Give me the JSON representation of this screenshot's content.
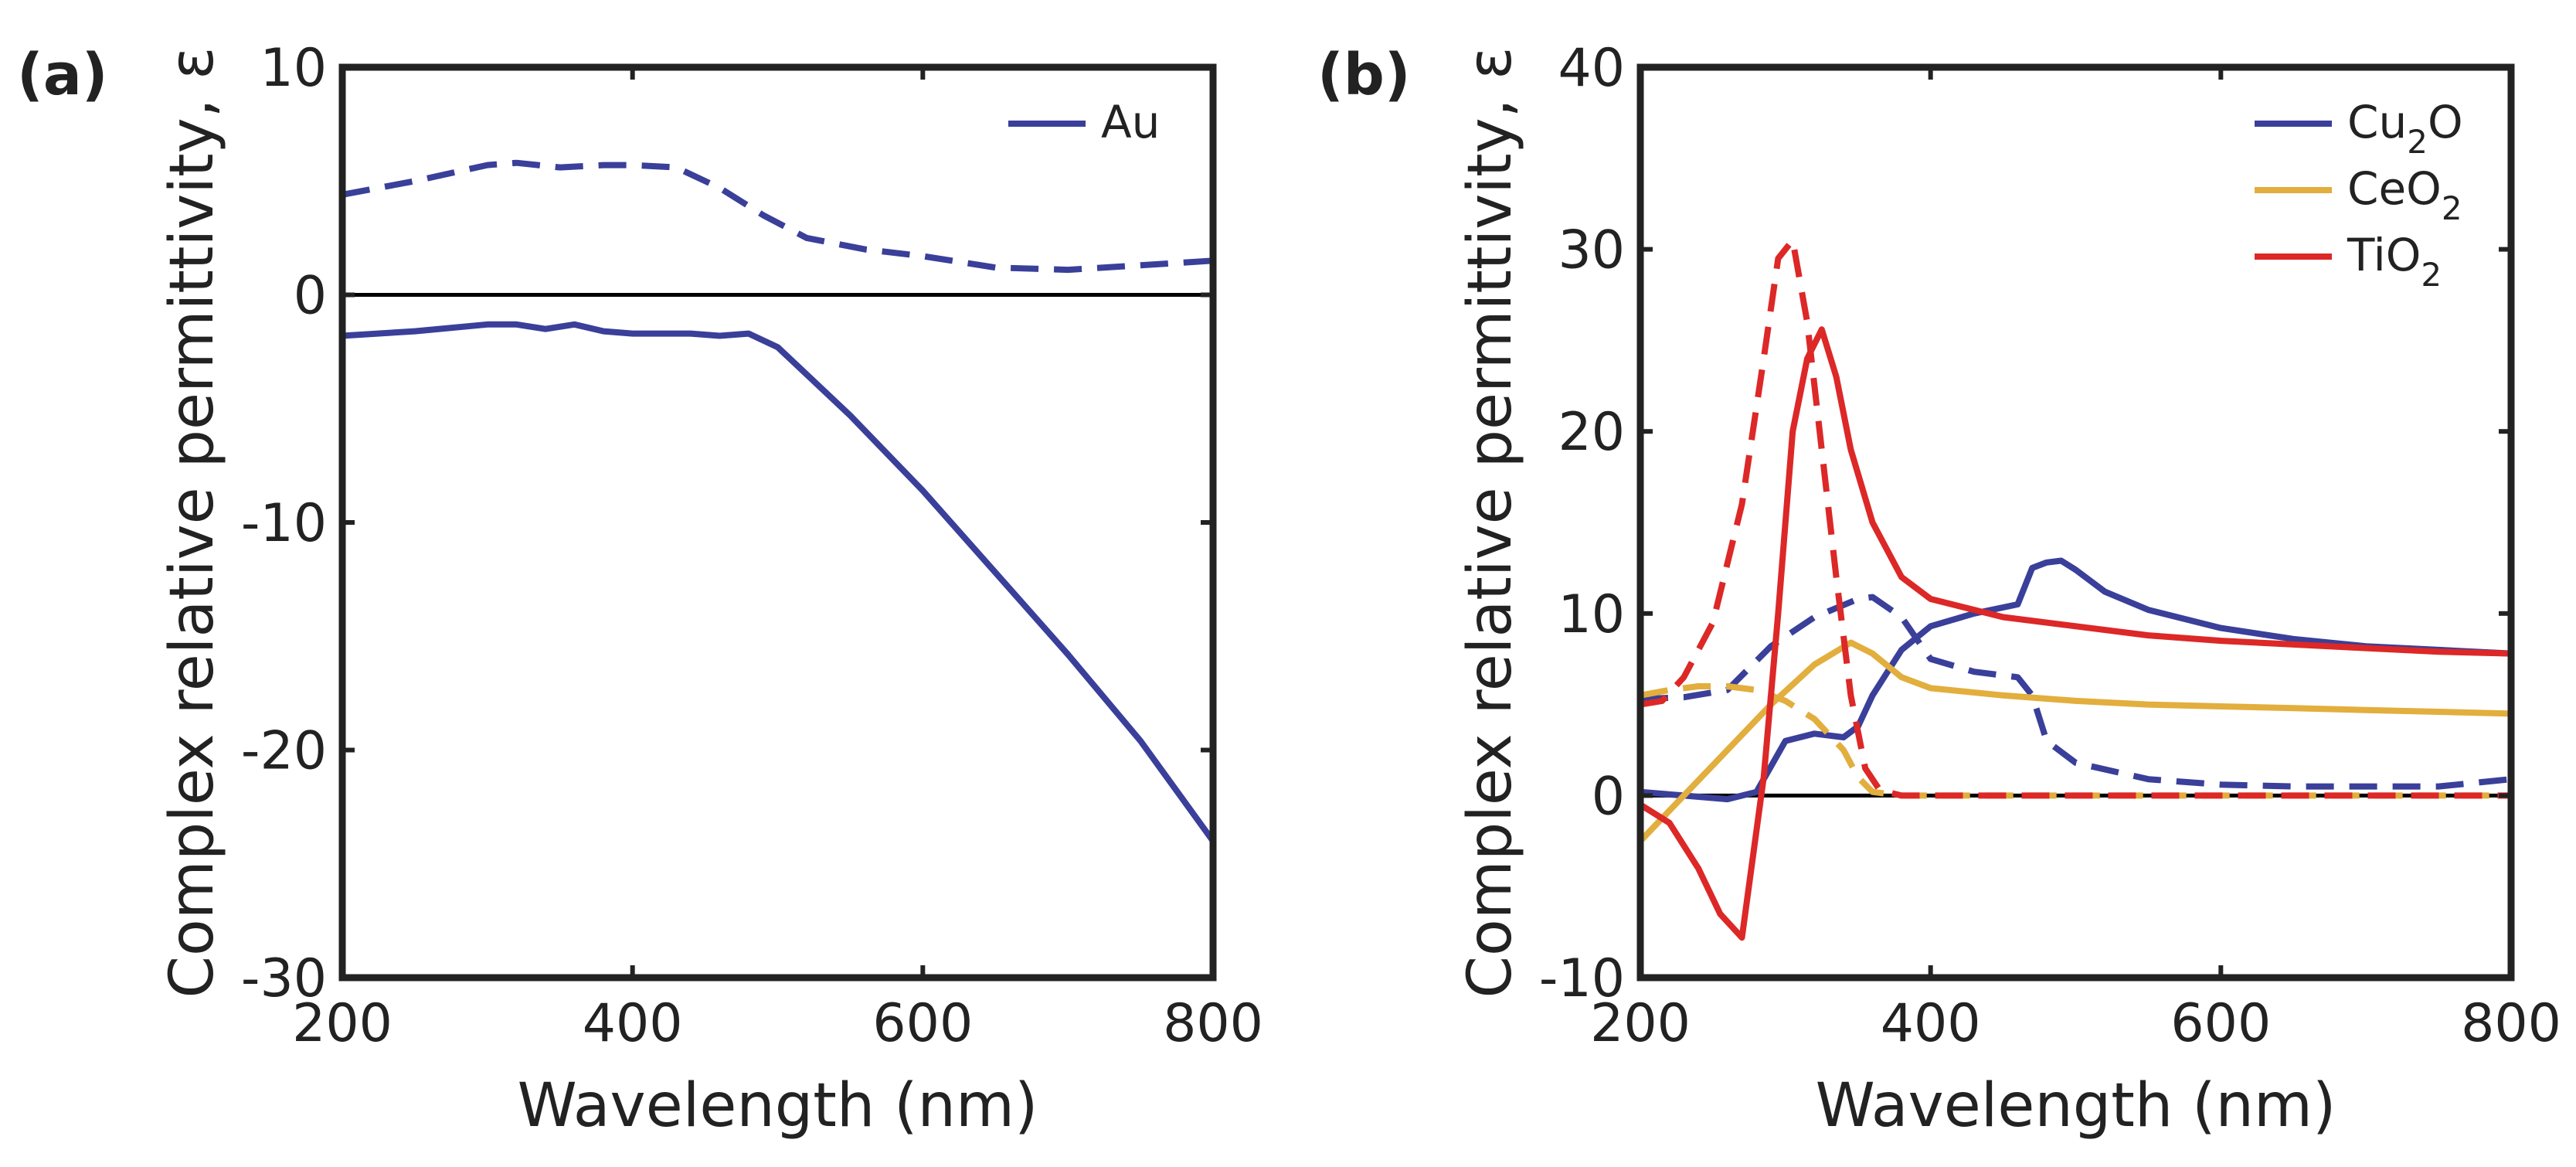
{
  "chart_data": [
    {
      "type": "line",
      "panel_label": "(a)",
      "xlabel": "Wavelength (nm)",
      "ylabel": "Complex relative permittivity, ε",
      "xlim": [
        200,
        800
      ],
      "ylim": [
        -30,
        10
      ],
      "xticks": [
        200,
        400,
        600,
        800
      ],
      "yticks": [
        -30,
        -20,
        -10,
        0,
        10
      ],
      "xtick_labels": [
        "200",
        "400",
        "600",
        "800"
      ],
      "ytick_labels": [
        "-30",
        "-20",
        "-10",
        "0",
        "10"
      ],
      "zero_line": true,
      "legend_position": "top-right",
      "series": [
        {
          "name": "Au",
          "sub": "",
          "tail": "",
          "component": "real",
          "style": "solid",
          "color": "#3a3f9a",
          "legend": true,
          "x": [
            200,
            250,
            300,
            320,
            340,
            360,
            380,
            400,
            420,
            440,
            460,
            480,
            500,
            550,
            600,
            650,
            700,
            750,
            800
          ],
          "y": [
            -1.8,
            -1.6,
            -1.3,
            -1.3,
            -1.5,
            -1.3,
            -1.6,
            -1.7,
            -1.7,
            -1.7,
            -1.8,
            -1.7,
            -2.3,
            -5.3,
            -8.6,
            -12.2,
            -15.8,
            -19.6,
            -24.0
          ]
        },
        {
          "name": "Au",
          "sub": "",
          "tail": "",
          "component": "imaginary",
          "style": "dashed",
          "color": "#3a3f9a",
          "legend": false,
          "x": [
            200,
            250,
            300,
            320,
            350,
            380,
            400,
            430,
            460,
            490,
            520,
            560,
            600,
            650,
            700,
            750,
            800
          ],
          "y": [
            4.4,
            5.0,
            5.7,
            5.8,
            5.6,
            5.7,
            5.7,
            5.6,
            4.7,
            3.5,
            2.5,
            2.0,
            1.7,
            1.2,
            1.1,
            1.3,
            1.5
          ]
        }
      ]
    },
    {
      "type": "line",
      "panel_label": "(b)",
      "xlabel": "Wavelength (nm)",
      "ylabel": "Complex relative permittivity, ε",
      "xlim": [
        200,
        800
      ],
      "ylim": [
        -10,
        40
      ],
      "xticks": [
        200,
        400,
        600,
        800
      ],
      "yticks": [
        -10,
        0,
        10,
        20,
        30,
        40
      ],
      "xtick_labels": [
        "200",
        "400",
        "600",
        "800"
      ],
      "ytick_labels": [
        "-10",
        "0",
        "10",
        "20",
        "30",
        "40"
      ],
      "zero_line": true,
      "legend_position": "top-right",
      "series": [
        {
          "name": "Cu",
          "sub": "2",
          "tail": "O",
          "component": "real",
          "style": "solid",
          "color": "#3a3f9a",
          "legend": true,
          "x": [
            200,
            230,
            260,
            280,
            300,
            320,
            340,
            350,
            360,
            380,
            400,
            430,
            460,
            470,
            480,
            490,
            500,
            520,
            550,
            600,
            650,
            700,
            750,
            800
          ],
          "y": [
            0.2,
            0.0,
            -0.2,
            0.2,
            3.0,
            3.4,
            3.2,
            3.8,
            5.5,
            8.0,
            9.3,
            10.0,
            10.5,
            12.5,
            12.8,
            12.9,
            12.4,
            11.2,
            10.2,
            9.2,
            8.6,
            8.2,
            8.0,
            7.8
          ]
        },
        {
          "name": "Cu",
          "sub": "2",
          "tail": "O",
          "component": "imaginary",
          "style": "dashed",
          "color": "#3a3f9a",
          "legend": false,
          "x": [
            200,
            230,
            260,
            290,
            320,
            350,
            360,
            380,
            400,
            430,
            460,
            470,
            480,
            500,
            550,
            600,
            650,
            700,
            750,
            800
          ],
          "y": [
            5.3,
            5.4,
            5.8,
            8.2,
            9.8,
            10.8,
            10.9,
            9.8,
            7.5,
            6.8,
            6.5,
            5.5,
            3.0,
            1.8,
            0.9,
            0.6,
            0.5,
            0.5,
            0.5,
            0.9
          ]
        },
        {
          "name": "CeO",
          "sub": "2",
          "tail": "",
          "component": "real",
          "style": "solid",
          "color": "#e2ae3d",
          "legend": true,
          "x": [
            200,
            230,
            260,
            290,
            320,
            345,
            360,
            380,
            400,
            450,
            500,
            550,
            600,
            650,
            700,
            750,
            800
          ],
          "y": [
            -2.5,
            0.0,
            2.5,
            5.0,
            7.2,
            8.4,
            7.8,
            6.5,
            5.9,
            5.5,
            5.2,
            5.0,
            4.9,
            4.8,
            4.7,
            4.6,
            4.5
          ]
        },
        {
          "name": "CeO",
          "sub": "2",
          "tail": "",
          "component": "imaginary",
          "style": "dashed",
          "color": "#e2ae3d",
          "legend": false,
          "x": [
            200,
            220,
            240,
            260,
            280,
            300,
            320,
            340,
            350,
            360,
            380,
            400,
            500,
            600,
            700,
            800
          ],
          "y": [
            5.5,
            5.8,
            6.0,
            6.0,
            5.8,
            5.2,
            4.2,
            2.5,
            1.0,
            0.2,
            0.0,
            0.0,
            0.0,
            0.0,
            0.0,
            0.0
          ]
        },
        {
          "name": "TiO",
          "sub": "2",
          "tail": "",
          "component": "real",
          "style": "solid",
          "color": "#dc2827",
          "legend": true,
          "x": [
            200,
            220,
            240,
            255,
            270,
            285,
            295,
            305,
            315,
            325,
            335,
            345,
            360,
            380,
            400,
            450,
            500,
            550,
            600,
            650,
            700,
            750,
            800
          ],
          "y": [
            -0.5,
            -1.5,
            -4.0,
            -6.5,
            -7.8,
            1.0,
            10.0,
            20.0,
            24.0,
            25.6,
            23.0,
            19.0,
            15.0,
            12.0,
            10.8,
            9.8,
            9.3,
            8.8,
            8.5,
            8.3,
            8.1,
            7.9,
            7.8
          ]
        },
        {
          "name": "TiO",
          "sub": "2",
          "tail": "",
          "component": "imaginary",
          "style": "dashed",
          "color": "#dc2827",
          "legend": false,
          "x": [
            200,
            215,
            230,
            250,
            270,
            285,
            295,
            305,
            315,
            325,
            335,
            345,
            355,
            365,
            380,
            400,
            500,
            600,
            700,
            800
          ],
          "y": [
            5.0,
            5.2,
            6.5,
            9.5,
            16.0,
            24.0,
            29.5,
            30.5,
            26.0,
            19.0,
            12.0,
            5.5,
            1.5,
            0.3,
            0.0,
            0.0,
            0.0,
            0.0,
            0.0,
            0.0
          ]
        }
      ]
    }
  ]
}
